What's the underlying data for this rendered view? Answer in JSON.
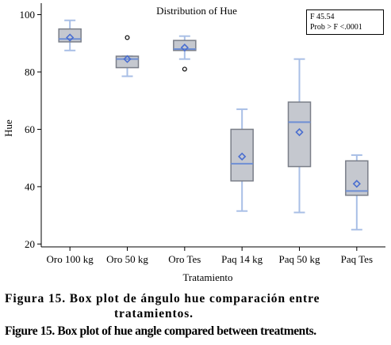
{
  "chart_data": {
    "type": "box",
    "title": "Distribution of Hue",
    "xlabel": "Tratamiento",
    "ylabel": "Hue",
    "ylim": [
      19,
      104
    ],
    "yticks": [
      20,
      40,
      60,
      80,
      100
    ],
    "grid": false,
    "categories": [
      "Oro 100 kg",
      "Oro 50 kg",
      "Oro Tes",
      "Paq 14 kg",
      "Paq 50 kg",
      "Paq Tes"
    ],
    "boxes": [
      {
        "whisker_low": 87.5,
        "q1": 90.5,
        "median": 91.5,
        "q3": 95.0,
        "whisker_high": 98.0,
        "mean": 92.0,
        "outliers": []
      },
      {
        "whisker_low": 78.5,
        "q1": 81.5,
        "median": 84.5,
        "q3": 85.5,
        "whisker_high": 85.5,
        "mean": 84.5,
        "outliers": [
          92.0
        ]
      },
      {
        "whisker_low": 84.5,
        "q1": 87.5,
        "median": 88.0,
        "q3": 91.0,
        "whisker_high": 92.5,
        "mean": 88.5,
        "outliers": [
          81.0
        ]
      },
      {
        "whisker_low": 31.5,
        "q1": 42.0,
        "median": 48.0,
        "q3": 60.0,
        "whisker_high": 67.0,
        "mean": 50.5,
        "outliers": []
      },
      {
        "whisker_low": 31.0,
        "q1": 47.0,
        "median": 62.5,
        "q3": 69.5,
        "whisker_high": 84.5,
        "mean": 59.0,
        "outliers": []
      },
      {
        "whisker_low": 25.0,
        "q1": 37.0,
        "median": 38.5,
        "q3": 49.0,
        "whisker_high": 51.0,
        "mean": 41.0,
        "outliers": []
      }
    ],
    "annotation": {
      "line1": "F 45.54",
      "line2": "Prob > F <.0001"
    },
    "legend": "none"
  },
  "colors": {
    "box_fill": "#c5c8cf",
    "box_stroke": "#7a7e88",
    "whisker": "#a9bfe6",
    "median": "#6f8fd4",
    "mean_marker": "#4a6ed0",
    "axis": "#000000"
  },
  "caption": {
    "es_line1": "Figura 15. Box plot de ángulo hue comparación entre",
    "es_line2": "tratamientos.",
    "en": "Figure 15. Box plot of hue angle compared between treatments."
  }
}
